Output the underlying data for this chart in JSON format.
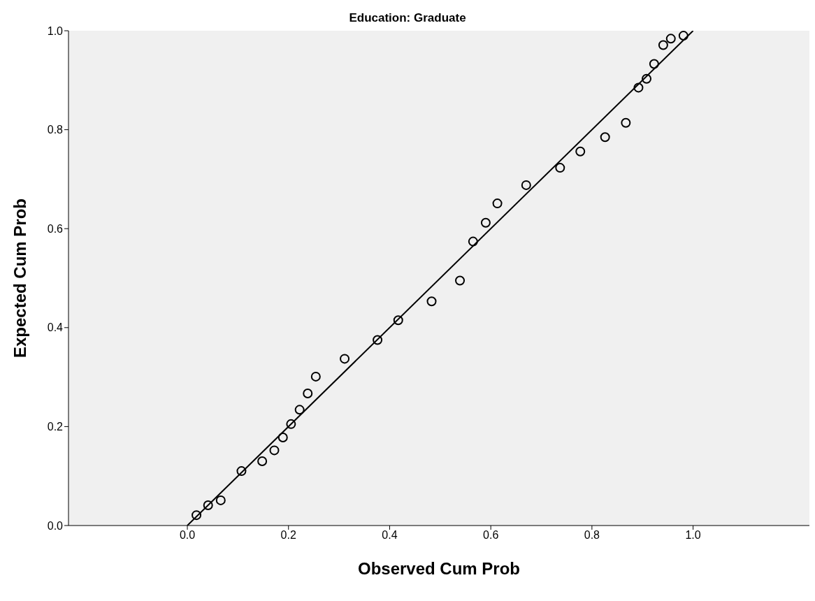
{
  "chart_data": {
    "type": "scatter",
    "title": "Education: Graduate",
    "xlabel": "Observed Cum Prob",
    "ylabel": "Expected Cum Prob",
    "xlim": [
      -0.235,
      1.23
    ],
    "ylim": [
      0,
      1
    ],
    "xticks": [
      {
        "value": 0,
        "label": "0.0"
      },
      {
        "value": 0.2,
        "label": "0.2"
      },
      {
        "value": 0.4,
        "label": "0.4"
      },
      {
        "value": 0.6,
        "label": "0.6"
      },
      {
        "value": 0.8,
        "label": "0.8"
      },
      {
        "value": 1,
        "label": "1.0"
      }
    ],
    "yticks": [
      {
        "value": 0,
        "label": "0.0"
      },
      {
        "value": 0.2,
        "label": "0.2"
      },
      {
        "value": 0.4,
        "label": "0.4"
      },
      {
        "value": 0.6,
        "label": "0.6"
      },
      {
        "value": 0.8,
        "label": "0.8"
      },
      {
        "value": 1,
        "label": "1.0"
      }
    ],
    "grid": false,
    "series": [
      {
        "color": "#000000",
        "marker": "circle",
        "x": [
          0.018,
          0.041,
          0.066,
          0.107,
          0.148,
          0.172,
          0.189,
          0.205,
          0.222,
          0.238,
          0.254,
          0.311,
          0.376,
          0.417,
          0.483,
          0.539,
          0.565,
          0.59,
          0.613,
          0.67,
          0.737,
          0.777,
          0.826,
          0.867,
          0.892,
          0.908,
          0.923,
          0.941,
          0.956,
          0.981
        ],
        "values": [
          0.021,
          0.041,
          0.051,
          0.11,
          0.13,
          0.152,
          0.178,
          0.205,
          0.234,
          0.267,
          0.301,
          0.337,
          0.375,
          0.415,
          0.453,
          0.495,
          0.574,
          0.612,
          0.651,
          0.688,
          0.723,
          0.756,
          0.785,
          0.814,
          0.885,
          0.903,
          0.933,
          0.971,
          0.984,
          0.99
        ]
      },
      {
        "type": "line",
        "color": "#000000",
        "x": [
          0,
          1
        ],
        "values": [
          0,
          1
        ],
        "line_style": "solid",
        "marker": "none"
      }
    ]
  }
}
